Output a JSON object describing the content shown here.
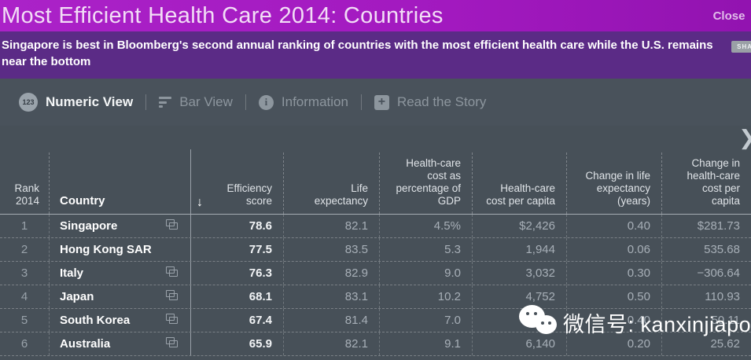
{
  "header": {
    "title": "Most Efficient Health Care 2014: Countries",
    "close_label": "Close"
  },
  "subtitle": {
    "text": "Singapore is best in Bloomberg's second annual ranking of countries with the most efficient health care while the U.S. remains near the bottom",
    "share_label": "SHA"
  },
  "toolbar": {
    "items": [
      {
        "label": "Numeric View",
        "icon": "numeric-123-icon",
        "badge": "123",
        "active": true
      },
      {
        "label": "Bar View",
        "icon": "bar-chart-icon",
        "active": false
      },
      {
        "label": "Information",
        "icon": "info-circle-icon",
        "glyph": "i",
        "active": false
      },
      {
        "label": "Read the Story",
        "icon": "plus-square-icon",
        "glyph": "+",
        "active": false
      }
    ]
  },
  "table": {
    "sort_indicator": "↓",
    "columns": [
      "Rank\n2014",
      "Country",
      "Efficiency\nscore",
      "Life\nexpectancy",
      "Health-care\ncost as\npercentage of\nGDP",
      "Health-care\ncost per capita",
      "Change in life\nexpectancy\n(years)",
      "Change in\nhealth-care\ncost per capita"
    ],
    "rows": [
      {
        "rank": "1",
        "country": "Singapore",
        "efficiency": "78.6",
        "life": "82.1",
        "gdp": "4.5%",
        "cost": "$2,426",
        "change_life": "0.40",
        "change_cost": "$281.73"
      },
      {
        "rank": "2",
        "country": "Hong Kong SAR",
        "efficiency": "77.5",
        "life": "83.5",
        "gdp": "5.3",
        "cost": "1,944",
        "change_life": "0.06",
        "change_cost": "535.68"
      },
      {
        "rank": "3",
        "country": "Italy",
        "efficiency": "76.3",
        "life": "82.9",
        "gdp": "9.0",
        "cost": "3,032",
        "change_life": "0.30",
        "change_cost": "−306.64"
      },
      {
        "rank": "4",
        "country": "Japan",
        "efficiency": "68.1",
        "life": "83.1",
        "gdp": "10.2",
        "cost": "4,752",
        "change_life": "0.50",
        "change_cost": "110.93"
      },
      {
        "rank": "5",
        "country": "South Korea",
        "efficiency": "67.4",
        "life": "81.4",
        "gdp": "7.0",
        "cost": "",
        "change_life": "0.40",
        "change_cost": "50.11"
      },
      {
        "rank": "6",
        "country": "Australia",
        "efficiency": "65.9",
        "life": "82.1",
        "gdp": "9.1",
        "cost": "6,140",
        "change_life": "0.20",
        "change_cost": "25.62"
      }
    ]
  },
  "watermark": {
    "text": "微信号: kanxinjiapo"
  },
  "icons": {
    "close": "x-icon",
    "country_link": "external-window-icon",
    "sort": "arrow-down-icon",
    "scroll": "chevron-right-icon",
    "watermark": "wechat-bubbles-icon"
  },
  "colors": {
    "titlebar_magenta": "#a219bf",
    "subtitle_purple": "#5b2b86",
    "panel_slate": "#49525b",
    "table_bg": "#475058",
    "primary_text": "#ffffff",
    "secondary_text": "#a7afb7"
  }
}
